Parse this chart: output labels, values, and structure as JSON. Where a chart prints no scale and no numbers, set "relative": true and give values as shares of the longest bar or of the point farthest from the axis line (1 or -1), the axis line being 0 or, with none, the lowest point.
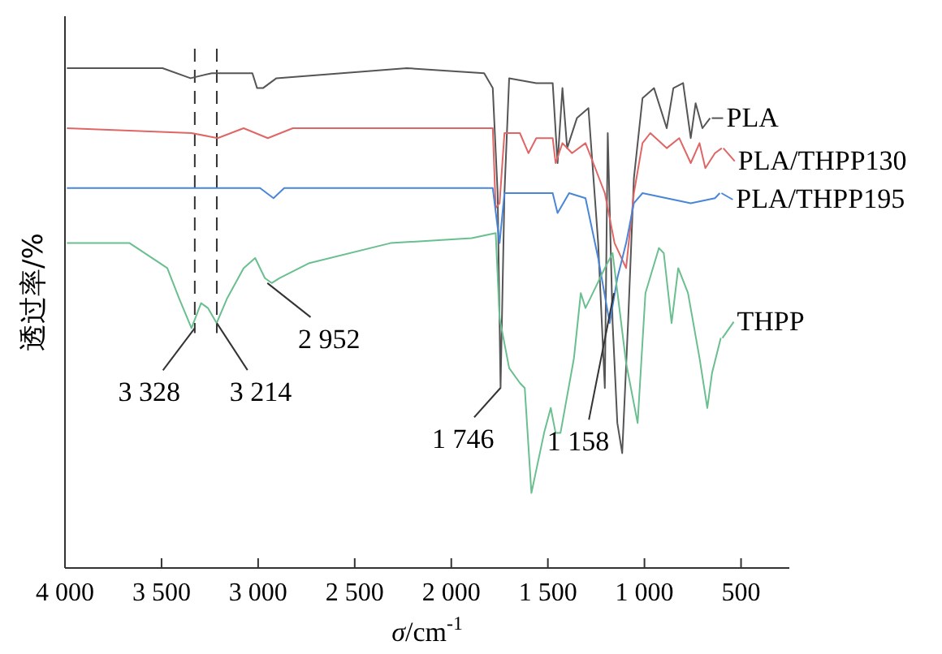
{
  "chart_data": {
    "type": "line",
    "relative": true,
    "xlabel": "*σ*/cm$^{-1}$",
    "ylabel": "透过率/%",
    "legend": "right",
    "grid": false,
    "xlim": [
      4000,
      250
    ],
    "xticks": [
      {
        "value": 4000,
        "label": "4 000"
      },
      {
        "value": 3500,
        "label": "3 500"
      },
      {
        "value": 3000,
        "label": "3 000"
      },
      {
        "value": 2500,
        "label": "2 500"
      },
      {
        "value": 2000,
        "label": "2 000"
      },
      {
        "value": 1500,
        "label": "1 500"
      },
      {
        "value": 1000,
        "label": "1 000"
      },
      500
    ],
    "tick_labels": "x",
    "line_style": "solid",
    "marker": "none",
    "series": [
      {
        "name": "PLA",
        "color": "#555555",
        "x": [
          3990,
          3495,
          3350,
          3240,
          3030,
          3005,
          2975,
          2905,
          2230,
          1830,
          1785,
          1760,
          1745,
          1725,
          1700,
          1560,
          1475,
          1450,
          1425,
          1400,
          1350,
          1290,
          1240,
          1205,
          1190,
          1165,
          1140,
          1115,
          1085,
          1055,
          1010,
          950,
          885,
          850,
          800,
          760,
          735,
          700,
          660
        ],
        "values": [
          1.0,
          1.0,
          0.98,
          0.99,
          0.99,
          0.96,
          0.96,
          0.98,
          1.0,
          0.99,
          0.96,
          0.75,
          0.36,
          0.75,
          0.98,
          0.97,
          0.97,
          0.81,
          0.96,
          0.84,
          0.9,
          0.92,
          0.65,
          0.36,
          0.87,
          0.49,
          0.29,
          0.23,
          0.49,
          0.78,
          0.94,
          0.96,
          0.88,
          0.96,
          0.97,
          0.86,
          0.93,
          0.88,
          0.9
        ]
      },
      {
        "name": "PLA/THPP130",
        "color": "#e06666",
        "x": [
          3990,
          3345,
          3210,
          3075,
          2950,
          2820,
          1785,
          1770,
          1750,
          1725,
          1645,
          1600,
          1560,
          1475,
          1460,
          1425,
          1375,
          1305,
          1265,
          1205,
          1155,
          1095,
          1055,
          1010,
          970,
          885,
          820,
          760,
          715,
          685,
          635,
          600
        ],
        "values": [
          0.88,
          0.87,
          0.86,
          0.88,
          0.86,
          0.88,
          0.88,
          0.72,
          0.73,
          0.87,
          0.87,
          0.83,
          0.86,
          0.86,
          0.81,
          0.85,
          0.83,
          0.85,
          0.81,
          0.75,
          0.65,
          0.6,
          0.75,
          0.85,
          0.87,
          0.84,
          0.86,
          0.81,
          0.85,
          0.8,
          0.83,
          0.84
        ]
      },
      {
        "name": "PLA/THPP195",
        "color": "#4a86d8",
        "x": [
          3990,
          2990,
          2920,
          2865,
          1785,
          1750,
          1725,
          1475,
          1450,
          1390,
          1305,
          1240,
          1180,
          1140,
          1095,
          1055,
          1010,
          760,
          635,
          610
        ],
        "values": [
          0.76,
          0.76,
          0.74,
          0.76,
          0.76,
          0.65,
          0.75,
          0.75,
          0.71,
          0.75,
          0.74,
          0.62,
          0.49,
          0.58,
          0.65,
          0.73,
          0.75,
          0.73,
          0.74,
          0.75
        ]
      },
      {
        "name": "THPP",
        "color": "#6abf8f",
        "x": [
          3990,
          3665,
          3470,
          3410,
          3345,
          3295,
          3260,
          3215,
          3160,
          3075,
          3015,
          2965,
          2930,
          2890,
          2735,
          2315,
          1895,
          1770,
          1750,
          1700,
          1645,
          1620,
          1585,
          1520,
          1485,
          1460,
          1435,
          1365,
          1330,
          1305,
          1280,
          1205,
          1165,
          1095,
          1035,
          995,
          925,
          900,
          860,
          825,
          775,
          715,
          675,
          650,
          605
        ],
        "values": [
          0.65,
          0.65,
          0.6,
          0.54,
          0.48,
          0.53,
          0.52,
          0.49,
          0.54,
          0.6,
          0.62,
          0.58,
          0.57,
          0.58,
          0.61,
          0.65,
          0.66,
          0.67,
          0.5,
          0.4,
          0.37,
          0.36,
          0.15,
          0.27,
          0.32,
          0.27,
          0.27,
          0.42,
          0.55,
          0.52,
          0.54,
          0.6,
          0.63,
          0.41,
          0.29,
          0.55,
          0.64,
          0.63,
          0.49,
          0.6,
          0.55,
          0.42,
          0.32,
          0.39,
          0.46
        ]
      }
    ],
    "ref_lines": [
      {
        "axis": "x",
        "value": 3328,
        "line_style": "dashed",
        "color": "#333333"
      },
      {
        "axis": "x",
        "value": 3214,
        "line_style": "dashed",
        "color": "#333333"
      }
    ],
    "annotations": [
      {
        "text": "3 328",
        "x": 3328,
        "y": 0.48
      },
      {
        "text": "3 214",
        "x": 3214,
        "y": 0.49
      },
      {
        "text": "2 952",
        "x": 2952,
        "y": 0.57
      },
      {
        "text": "1 746",
        "x": 1746,
        "y": 0.36
      },
      {
        "text": "1 158",
        "x": 1158,
        "y": 0.55
      }
    ]
  }
}
